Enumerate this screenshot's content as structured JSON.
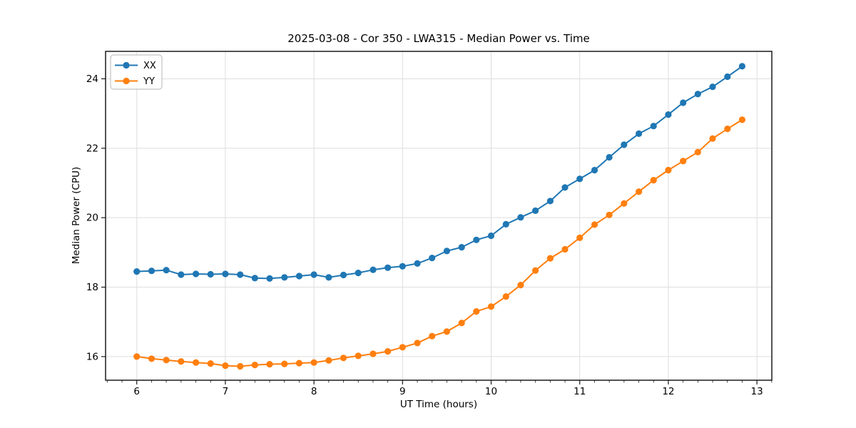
{
  "chart_data": {
    "type": "line",
    "title": "2025-03-08 - Cor 350 - LWA315 - Median Power vs. Time",
    "xlabel": "UT Time (hours)",
    "ylabel": "Median Power (CPU)",
    "xlim": [
      5.648,
      13.168
    ],
    "ylim": [
      15.32,
      24.79
    ],
    "x_major_ticks": [
      6,
      7,
      8,
      9,
      10,
      11,
      12,
      13
    ],
    "y_major_ticks": [
      16,
      18,
      20,
      22,
      24
    ],
    "x_minor_step": 0.1667,
    "grid": true,
    "grid_color": "#dedede",
    "axis_color": "#1a1a1a",
    "legend_position": "upper left",
    "x": [
      6.0,
      6.167,
      6.333,
      6.5,
      6.667,
      6.833,
      7.0,
      7.167,
      7.333,
      7.5,
      7.667,
      7.833,
      8.0,
      8.167,
      8.333,
      8.5,
      8.667,
      8.833,
      9.0,
      9.167,
      9.333,
      9.5,
      9.667,
      9.833,
      10.0,
      10.167,
      10.333,
      10.5,
      10.667,
      10.833,
      11.0,
      11.167,
      11.333,
      11.5,
      11.667,
      11.833,
      12.0,
      12.167,
      12.333,
      12.5,
      12.667,
      12.833
    ],
    "series": [
      {
        "name": "XX",
        "color": "#1f77b4",
        "values": [
          18.45,
          18.47,
          18.49,
          18.36,
          18.38,
          18.37,
          18.38,
          18.36,
          18.26,
          18.25,
          18.28,
          18.32,
          18.36,
          18.28,
          18.35,
          18.41,
          18.5,
          18.56,
          18.6,
          18.68,
          18.84,
          19.04,
          19.15,
          19.36,
          19.48,
          19.81,
          20.01,
          20.2,
          20.48,
          20.87,
          21.12,
          21.37,
          21.74,
          22.1,
          22.42,
          22.64,
          22.97,
          23.31,
          23.56,
          23.77,
          24.06,
          24.36
        ]
      },
      {
        "name": "YY",
        "color": "#ff7f0e",
        "values": [
          16.0,
          15.94,
          15.9,
          15.86,
          15.83,
          15.8,
          15.74,
          15.72,
          15.76,
          15.78,
          15.79,
          15.81,
          15.83,
          15.89,
          15.96,
          16.02,
          16.08,
          16.15,
          16.27,
          16.39,
          16.59,
          16.72,
          16.97,
          17.3,
          17.44,
          17.73,
          18.06,
          18.48,
          18.83,
          19.09,
          19.42,
          19.8,
          20.08,
          20.41,
          20.75,
          21.08,
          21.37,
          21.63,
          21.89,
          22.28,
          22.56,
          22.82
        ]
      }
    ]
  }
}
